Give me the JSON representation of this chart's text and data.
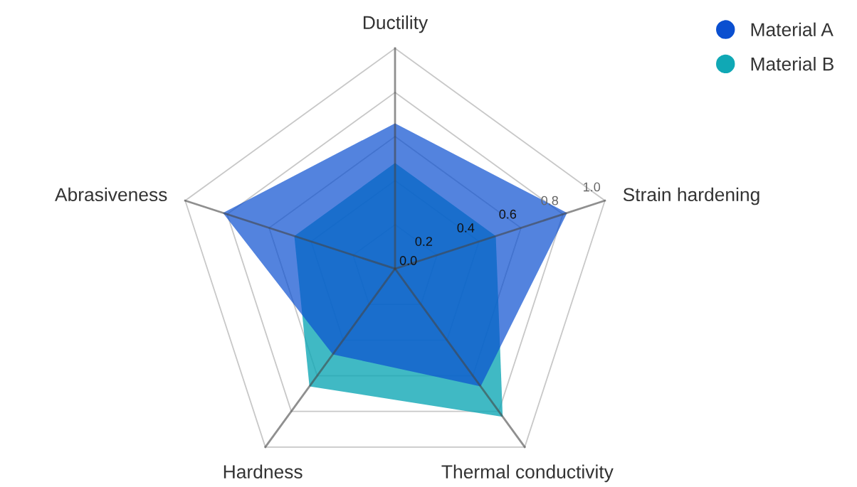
{
  "chart_data": {
    "type": "radar",
    "categories": [
      "Ductility",
      "Strain hardening",
      "Thermal conductivity",
      "Hardness",
      "Abrasiveness"
    ],
    "series": [
      {
        "name": "Material B",
        "color": "#10a8b5",
        "values": [
          0.48,
          0.48,
          0.83,
          0.66,
          0.48
        ]
      },
      {
        "name": "Material A",
        "color": "#0a4fd0",
        "values": [
          0.66,
          0.82,
          0.66,
          0.48,
          0.82
        ]
      }
    ],
    "ylim": [
      0,
      1.0
    ],
    "yticks": [
      {
        "value": 0,
        "label": "0.0"
      },
      {
        "value": 0.2,
        "label": "0.2"
      },
      {
        "value": 0.4,
        "label": "0.4"
      },
      {
        "value": 0.6,
        "label": "0.6"
      },
      {
        "value": 0.8,
        "label": "0.8"
      },
      {
        "value": 1.0,
        "label": "1.0"
      }
    ],
    "grid": true,
    "legend": "top right",
    "marker": "none"
  }
}
